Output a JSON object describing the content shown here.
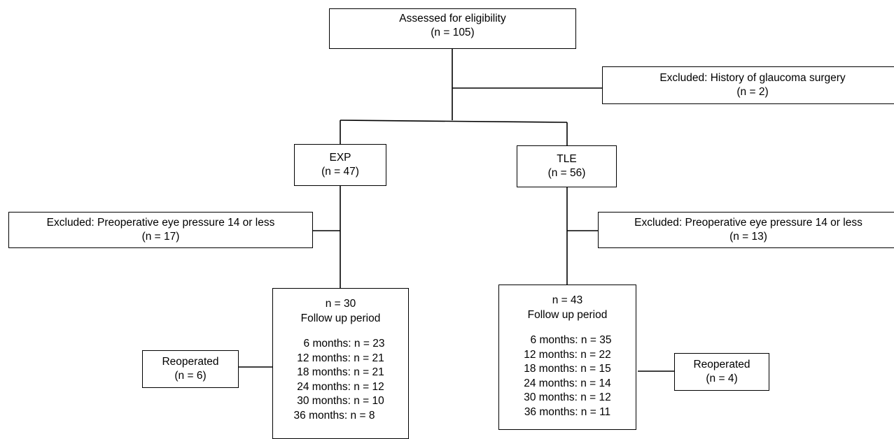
{
  "assessed": {
    "label": "Assessed for eligibility",
    "count": "(n = 105)"
  },
  "excluded_top": {
    "label": "Excluded: History of glaucoma surgery",
    "count": "(n = 2)"
  },
  "exp": {
    "label": "EXP",
    "count": "(n = 47)",
    "excluded": {
      "label": "Excluded: Preoperative eye pressure 14 or less",
      "count": "(n = 17)"
    },
    "followup": {
      "count": "n = 30",
      "title": "Follow up period",
      "items": [
        "6 months: n = 23",
        "12 months: n = 21",
        "18 months: n = 21",
        "24 months: n = 12",
        "30 months: n = 10",
        "36 months: n = 8"
      ]
    },
    "reoperated": {
      "label": "Reoperated",
      "count": "(n = 6)"
    }
  },
  "tle": {
    "label": "TLE",
    "count": "(n = 56)",
    "excluded": {
      "label": "Excluded: Preoperative eye pressure 14 or less",
      "count": "(n = 13)"
    },
    "followup": {
      "count": "n = 43",
      "title": "Follow up period",
      "items": [
        "6 months: n = 35",
        "12 months: n = 22",
        "18 months: n = 15",
        "24 months: n = 14",
        "30 months: n = 12",
        "36 months: n = 11"
      ]
    },
    "reoperated": {
      "label": "Reoperated",
      "count": "(n = 4)"
    }
  }
}
